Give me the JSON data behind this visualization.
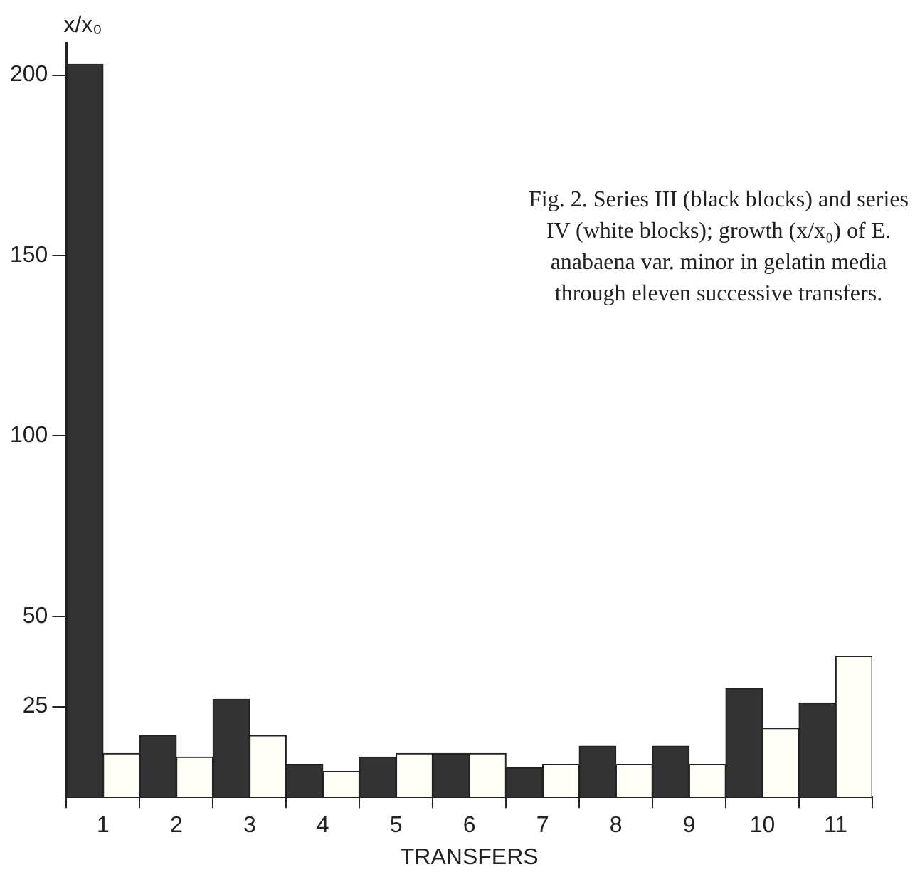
{
  "chart_data": {
    "type": "bar",
    "ylabel": "x/x₀",
    "xlabel": "TRANSFERS",
    "categories": [
      "1",
      "2",
      "3",
      "4",
      "5",
      "6",
      "7",
      "8",
      "9",
      "10",
      "11"
    ],
    "series": [
      {
        "color": "#333333",
        "values": [
          203,
          17,
          27,
          9,
          11,
          12,
          8,
          14,
          14,
          30,
          26
        ]
      },
      {
        "color": "#fffff8",
        "values": [
          12,
          11,
          17,
          7,
          12,
          12,
          9,
          9,
          9,
          19,
          39
        ]
      }
    ],
    "ylim": [
      0,
      209
    ],
    "yticks": [
      25,
      50,
      100,
      150,
      200
    ],
    "grid": false,
    "legend": false,
    "annotations": [
      "Fig. 2.  Series III (black blocks) and series IV (white blocks); growth (x/x₀) of E. anabaena var. minor in gelatin media through eleven successive transfers."
    ]
  }
}
